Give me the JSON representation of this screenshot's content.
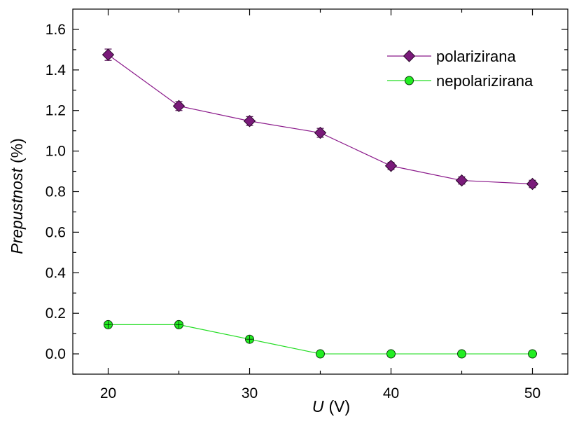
{
  "chart_data": {
    "type": "line",
    "xlabel": {
      "symbol": "U",
      "unit": "(V)"
    },
    "ylabel": {
      "main": "Prepustnost",
      "unit": "(%)"
    },
    "xlim": [
      17.5,
      52.5
    ],
    "ylim": [
      -0.1,
      1.7
    ],
    "xticks": [
      20,
      30,
      40,
      50
    ],
    "xtick_labels": [
      "20",
      "30",
      "40",
      "50"
    ],
    "xminor": [
      25,
      35,
      45
    ],
    "yticks": [
      0.0,
      0.2,
      0.4,
      0.6,
      0.8,
      1.0,
      1.2,
      1.4,
      1.6
    ],
    "ytick_labels": [
      "0.0",
      "0.2",
      "0.4",
      "0.6",
      "0.8",
      "1.0",
      "1.2",
      "1.4",
      "1.6"
    ],
    "grid": false,
    "legend_position": "top-right",
    "series": [
      {
        "name": "polarizirana",
        "marker": "diamond",
        "color": "#7a1a7a",
        "line_color": "#8b1a8b",
        "x": [
          20,
          25,
          30,
          35,
          40,
          45,
          50
        ],
        "y": [
          1.475,
          1.222,
          1.148,
          1.09,
          0.927,
          0.855,
          0.838
        ],
        "error": [
          0.028,
          0.022,
          0.022,
          0.022,
          0.018,
          0.018,
          0.018
        ]
      },
      {
        "name": "nepolarizirana",
        "marker": "circle",
        "color": "#22ee22",
        "line_color": "#22dd22",
        "x": [
          20,
          25,
          30,
          35,
          40,
          45,
          50
        ],
        "y": [
          0.144,
          0.144,
          0.072,
          0.0,
          0.0,
          0.0,
          0.0
        ],
        "error": [
          0.012,
          0.012,
          0.012,
          0.0,
          0.0,
          0.0,
          0.0
        ]
      }
    ]
  }
}
